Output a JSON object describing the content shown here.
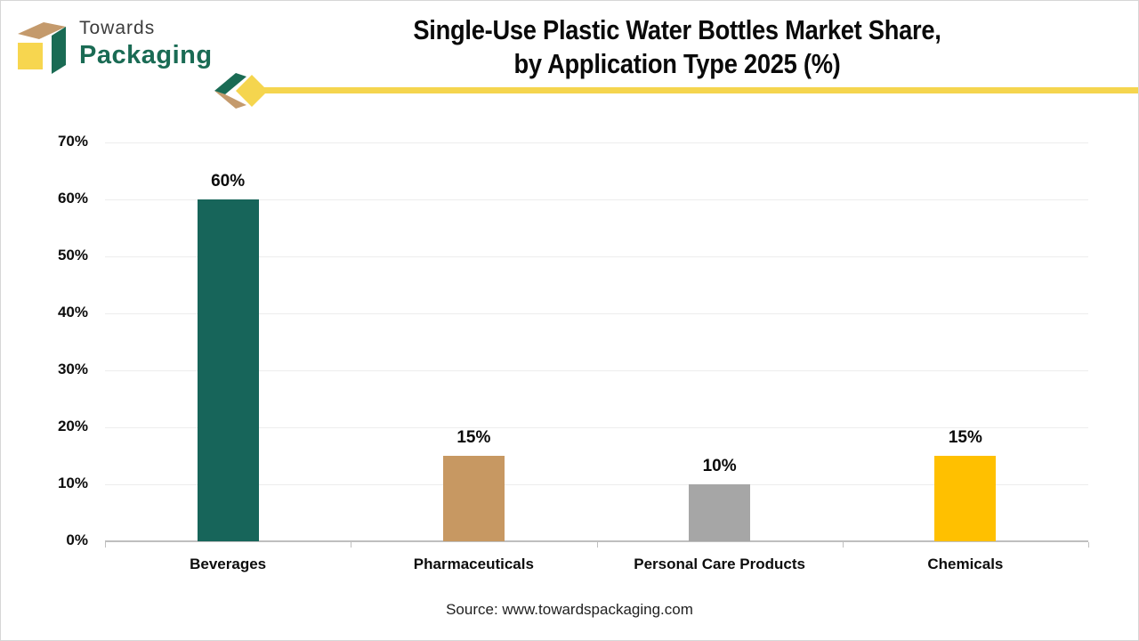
{
  "header": {
    "logo": {
      "line1": "Towards",
      "line2": "Packaging"
    },
    "title_line1": "Single-Use Plastic Water Bottles Market Share,",
    "title_line2": "by Application Type 2025 (%)"
  },
  "footer": {
    "source": "Source: www.towardspackaging.com"
  },
  "colors": {
    "brand_green": "#1A6B54",
    "brand_tan": "#C49A6C",
    "brand_yellow": "#F5D54E",
    "axis_gray": "#BFBFBF",
    "gridline_gray": "#EDEDED"
  },
  "chart_data": {
    "type": "bar",
    "title": "Single-Use Plastic Water Bottles Market Share, by Application Type 2025 (%)",
    "categories": [
      "Beverages",
      "Pharmaceuticals",
      "Personal Care Products",
      "Chemicals"
    ],
    "values": [
      60,
      15,
      10,
      15
    ],
    "data_labels": [
      "60%",
      "15%",
      "10%",
      "15%"
    ],
    "bar_colors": [
      "#17655A",
      "#C79862",
      "#A6A6A6",
      "#FFC000"
    ],
    "xlabel": "",
    "ylabel": "",
    "ylim": [
      0,
      70
    ],
    "ytick_step": 10,
    "ytick_suffix": "%",
    "grid": true,
    "legend": false
  }
}
